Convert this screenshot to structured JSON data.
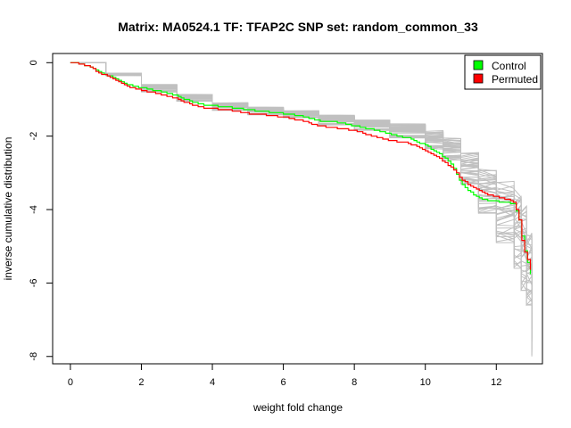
{
  "chart_data": {
    "type": "line",
    "title": "Matrix: MA0524.1 TF: TFAP2C SNP set: random_common_33",
    "xlabel": "weight fold change",
    "ylabel": "inverse cumulative distribution",
    "xlim": [
      -0.5,
      13.3
    ],
    "ylim": [
      -8.2,
      0.25
    ],
    "x_ticks": [
      0,
      2,
      4,
      6,
      8,
      10,
      12
    ],
    "x_tick_labels": [
      "0",
      "2",
      "4",
      "6",
      "8",
      "10",
      "12"
    ],
    "y_ticks": [
      0,
      -2,
      -4,
      -6,
      -8
    ],
    "y_tick_labels": [
      "0",
      "-2",
      "-4",
      "-6",
      "-8"
    ],
    "grid": false,
    "legend_position": "top-right",
    "series": [
      {
        "name": "Control",
        "color": "#00ff00",
        "x": [
          0,
          0.3,
          0.5,
          0.8,
          1.0,
          1.3,
          1.6,
          2.0,
          2.5,
          3.0,
          3.3,
          3.6,
          4.0,
          4.5,
          5.0,
          5.5,
          6.0,
          6.5,
          7.0,
          7.5,
          8.0,
          8.5,
          9.0,
          9.5,
          10.0,
          10.3,
          10.6,
          10.8,
          11.0,
          11.2,
          11.5,
          11.8,
          12.0,
          12.3,
          12.5,
          12.65,
          12.75,
          12.85,
          12.95,
          13.0
        ],
        "y": [
          0,
          -0.03,
          -0.1,
          -0.25,
          -0.33,
          -0.45,
          -0.58,
          -0.68,
          -0.78,
          -0.9,
          -1.02,
          -1.12,
          -1.17,
          -1.22,
          -1.28,
          -1.33,
          -1.38,
          -1.45,
          -1.58,
          -1.62,
          -1.72,
          -1.82,
          -1.95,
          -2.05,
          -2.25,
          -2.42,
          -2.62,
          -2.88,
          -3.3,
          -3.48,
          -3.68,
          -3.75,
          -3.78,
          -3.8,
          -3.85,
          -4.3,
          -4.9,
          -5.3,
          -5.7,
          -6.05
        ]
      },
      {
        "name": "Permuted",
        "color": "#ff0000",
        "x": [
          0,
          0.3,
          0.5,
          0.8,
          1.0,
          1.3,
          1.6,
          2.0,
          2.5,
          3.0,
          3.3,
          3.6,
          4.0,
          4.5,
          5.0,
          5.5,
          6.0,
          6.5,
          7.0,
          7.5,
          8.0,
          8.5,
          9.0,
          9.5,
          10.0,
          10.3,
          10.6,
          10.8,
          11.0,
          11.2,
          11.5,
          11.8,
          12.0,
          12.3,
          12.5,
          12.65,
          12.75,
          12.85,
          12.95,
          13.0
        ],
        "y": [
          0,
          -0.03,
          -0.1,
          -0.27,
          -0.35,
          -0.5,
          -0.65,
          -0.75,
          -0.85,
          -0.98,
          -1.1,
          -1.2,
          -1.25,
          -1.3,
          -1.38,
          -1.42,
          -1.48,
          -1.58,
          -1.72,
          -1.78,
          -1.85,
          -2.0,
          -2.12,
          -2.18,
          -2.4,
          -2.55,
          -2.75,
          -2.92,
          -3.15,
          -3.3,
          -3.48,
          -3.6,
          -3.65,
          -3.72,
          -3.8,
          -4.3,
          -5.05,
          -5.25,
          -5.55,
          -5.95
        ]
      }
    ],
    "background_series": {
      "color": "#c0c0c0",
      "count": 40,
      "x": [
        0,
        1.0,
        2.0,
        3.0,
        4.0,
        5.0,
        6.0,
        7.0,
        8.0,
        9.0,
        10.0,
        10.5,
        11.0,
        11.5,
        12.0,
        12.5,
        12.7,
        12.85,
        13.0
      ],
      "y_min": [
        0,
        -0.35,
        -0.8,
        -1.05,
        -1.3,
        -1.42,
        -1.5,
        -1.7,
        -1.85,
        -2.05,
        -2.35,
        -2.65,
        -3.3,
        -4.1,
        -4.9,
        -5.6,
        -6.2,
        -6.6,
        -8.0
      ],
      "y_max": [
        0,
        -0.28,
        -0.58,
        -0.85,
        -1.08,
        -1.2,
        -1.3,
        -1.42,
        -1.55,
        -1.65,
        -1.85,
        -2.05,
        -2.45,
        -2.9,
        -3.2,
        -3.4,
        -3.8,
        -4.6,
        -5.6
      ]
    }
  },
  "legend": {
    "items": [
      {
        "label": "Control",
        "color": "#00ff00"
      },
      {
        "label": "Permuted",
        "color": "#ff0000"
      }
    ]
  }
}
